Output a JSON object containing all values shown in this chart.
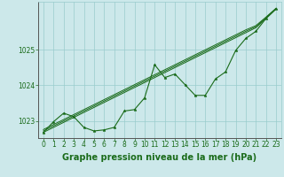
{
  "title": "Graphe pression niveau de la mer (hPa)",
  "background_color": "#cce8ea",
  "grid_color": "#99cccc",
  "line_color": "#1a6b1a",
  "text_color": "#1a6b1a",
  "xlim": [
    -0.5,
    23.5
  ],
  "ylim": [
    1022.52,
    1026.35
  ],
  "ytick_labels": [
    "1023",
    "1024",
    "1025"
  ],
  "yticks": [
    1023,
    1024,
    1025
  ],
  "xticks": [
    0,
    1,
    2,
    3,
    4,
    5,
    6,
    7,
    8,
    9,
    10,
    11,
    12,
    13,
    14,
    15,
    16,
    17,
    18,
    19,
    20,
    21,
    22,
    23
  ],
  "main_series": [
    1022.68,
    1022.98,
    1023.22,
    1023.12,
    1022.82,
    1022.72,
    1022.75,
    1022.82,
    1023.28,
    1023.32,
    1023.65,
    1024.58,
    1024.22,
    1024.32,
    1024.02,
    1023.72,
    1023.72,
    1024.18,
    1024.38,
    1024.98,
    1025.32,
    1025.52,
    1025.88,
    1026.15
  ],
  "trend1": [
    1022.68,
    1022.82,
    1022.96,
    1023.1,
    1023.24,
    1023.38,
    1023.52,
    1023.66,
    1023.8,
    1023.94,
    1024.08,
    1024.22,
    1024.36,
    1024.5,
    1024.64,
    1024.78,
    1024.92,
    1025.06,
    1025.2,
    1025.34,
    1025.48,
    1025.62,
    1025.88,
    1026.15
  ],
  "trend2": [
    1022.72,
    1022.86,
    1023.0,
    1023.14,
    1023.28,
    1023.42,
    1023.56,
    1023.7,
    1023.84,
    1023.98,
    1024.12,
    1024.26,
    1024.4,
    1024.54,
    1024.68,
    1024.82,
    1024.96,
    1025.1,
    1025.24,
    1025.38,
    1025.52,
    1025.65,
    1025.9,
    1026.16
  ],
  "trend3": [
    1022.76,
    1022.9,
    1023.04,
    1023.18,
    1023.32,
    1023.46,
    1023.6,
    1023.74,
    1023.88,
    1024.02,
    1024.16,
    1024.3,
    1024.44,
    1024.58,
    1024.72,
    1024.86,
    1025.0,
    1025.14,
    1025.28,
    1025.42,
    1025.56,
    1025.68,
    1025.92,
    1026.17
  ],
  "title_fontsize": 7.0,
  "tick_fontsize": 5.5
}
